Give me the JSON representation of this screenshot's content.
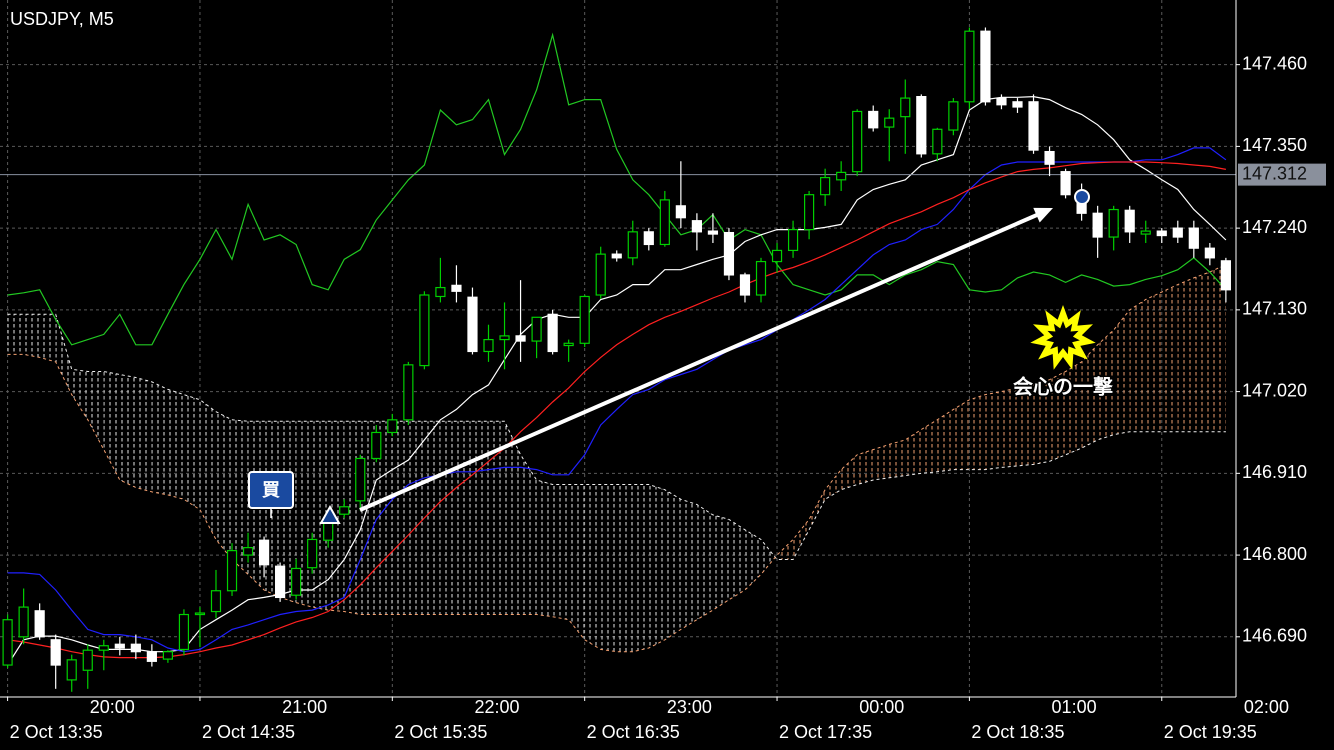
{
  "chart_data": {
    "type": "candlestick",
    "title": "USDJPY, M5",
    "categories": [
      "2 Oct 13:35",
      null,
      null,
      null,
      null,
      null,
      null,
      null,
      null,
      null,
      null,
      null,
      "2 Oct 14:35",
      null,
      null,
      null,
      null,
      null,
      null,
      null,
      null,
      null,
      null,
      null,
      "2 Oct 15:35",
      null,
      null,
      null,
      null,
      null,
      null,
      null,
      null,
      null,
      null,
      null,
      "2 Oct 16:35",
      null,
      null,
      null,
      null,
      null,
      null,
      null,
      null,
      null,
      null,
      null,
      "2 Oct 17:35",
      null,
      null,
      null,
      null,
      null,
      null,
      null,
      null,
      null,
      null,
      null,
      "2 Oct 18:35",
      null,
      null,
      null,
      null,
      null,
      null,
      null,
      null,
      null,
      null,
      null,
      "2 Oct 19:35",
      null,
      null,
      null,
      null,
      null
    ],
    "local_time_labels": [
      null,
      null,
      null,
      null,
      null,
      "20:00",
      null,
      null,
      null,
      null,
      null,
      null,
      null,
      null,
      null,
      null,
      null,
      "21:00",
      null,
      null,
      null,
      null,
      null,
      null,
      null,
      null,
      null,
      null,
      null,
      "22:00",
      null,
      null,
      null,
      null,
      null,
      null,
      null,
      null,
      null,
      null,
      null,
      "23:00",
      null,
      null,
      null,
      null,
      null,
      null,
      null,
      null,
      null,
      null,
      null,
      "00:00",
      null,
      null,
      null,
      null,
      null,
      null,
      null,
      null,
      null,
      null,
      null,
      "01:00",
      null,
      null,
      null,
      null,
      null,
      null,
      null,
      null,
      null,
      null,
      null,
      "02:00"
    ],
    "open": [
      146.652,
      146.69,
      146.725,
      146.686,
      146.632,
      146.645,
      146.672,
      146.68,
      146.68,
      146.67,
      146.66,
      146.673,
      146.72,
      146.724,
      146.752,
      146.8,
      146.82,
      146.785,
      146.746,
      146.783,
      146.82,
      146.855,
      146.873,
      146.93,
      146.965,
      146.982,
      147.055,
      147.148,
      147.163,
      147.147,
      147.074,
      147.09,
      147.095,
      147.088,
      147.124,
      147.082,
      147.085,
      147.15,
      147.205,
      147.2,
      147.235,
      147.218,
      147.27,
      147.25,
      147.236,
      147.234,
      147.177,
      147.15,
      147.195,
      147.21,
      147.238,
      147.285,
      147.305,
      147.316,
      147.397,
      147.376,
      147.39,
      147.417,
      147.34,
      147.372,
      147.41,
      147.505,
      147.415,
      147.41,
      147.41,
      147.343,
      147.316,
      147.28,
      147.26,
      147.228,
      147.264,
      147.232,
      147.236,
      147.24,
      147.24,
      147.213,
      147.196,
      null
    ],
    "high": [
      146.72,
      146.755,
      146.735,
      146.693,
      146.666,
      146.68,
      146.686,
      146.69,
      146.693,
      146.68,
      146.672,
      146.727,
      146.73,
      146.78,
      146.816,
      146.83,
      146.825,
      146.79,
      146.795,
      146.83,
      146.855,
      146.875,
      146.935,
      146.975,
      146.99,
      147.06,
      147.155,
      147.2,
      147.19,
      147.16,
      147.11,
      147.14,
      147.17,
      147.12,
      147.13,
      147.09,
      147.15,
      147.215,
      147.21,
      147.25,
      147.24,
      147.29,
      147.33,
      147.26,
      147.26,
      147.24,
      147.18,
      147.2,
      147.22,
      147.25,
      147.29,
      147.32,
      147.33,
      147.4,
      147.405,
      147.4,
      147.44,
      147.42,
      147.375,
      147.415,
      147.51,
      147.51,
      147.42,
      147.415,
      147.42,
      147.35,
      147.32,
      147.3,
      147.27,
      147.27,
      147.27,
      147.25,
      147.24,
      147.25,
      147.25,
      147.22,
      147.2,
      null
    ],
    "low": [
      146.648,
      146.68,
      146.686,
      146.62,
      146.616,
      146.62,
      146.645,
      146.665,
      146.66,
      146.65,
      146.655,
      146.665,
      146.676,
      146.715,
      146.745,
      146.79,
      146.77,
      146.737,
      146.74,
      146.775,
      146.81,
      146.85,
      146.86,
      146.925,
      146.96,
      146.975,
      147.05,
      147.14,
      147.14,
      147.07,
      147.06,
      147.05,
      147.06,
      147.065,
      147.07,
      147.06,
      147.08,
      147.145,
      147.195,
      147.19,
      147.21,
      147.215,
      147.24,
      147.21,
      147.22,
      147.17,
      147.14,
      147.14,
      147.18,
      147.2,
      147.225,
      147.27,
      147.29,
      147.31,
      147.37,
      147.33,
      147.34,
      147.335,
      147.33,
      147.365,
      147.4,
      147.405,
      147.4,
      147.395,
      147.34,
      147.31,
      147.28,
      147.25,
      147.2,
      147.21,
      147.22,
      147.22,
      147.22,
      147.22,
      147.2,
      147.19,
      147.14,
      null
    ],
    "close": [
      146.713,
      146.73,
      146.69,
      146.652,
      146.659,
      146.672,
      146.678,
      146.675,
      146.67,
      146.657,
      146.67,
      146.72,
      146.722,
      146.752,
      146.806,
      146.81,
      146.787,
      146.743,
      146.782,
      146.821,
      146.848,
      146.865,
      146.93,
      146.965,
      146.982,
      147.056,
      147.15,
      147.16,
      147.155,
      147.074,
      147.09,
      147.095,
      147.088,
      147.12,
      147.074,
      147.085,
      147.148,
      147.205,
      147.2,
      147.235,
      147.218,
      147.278,
      147.254,
      147.235,
      147.232,
      147.177,
      147.15,
      147.195,
      147.21,
      147.238,
      147.285,
      147.308,
      147.315,
      147.397,
      147.375,
      147.388,
      147.415,
      147.34,
      147.373,
      147.41,
      147.505,
      147.41,
      147.406,
      147.403,
      147.345,
      147.326,
      147.285,
      147.26,
      147.228,
      147.265,
      147.235,
      147.236,
      147.23,
      147.228,
      147.213,
      147.2,
      147.157,
      null
    ],
    "up_color": "#00d000",
    "down_color": "#ffffff",
    "lines": [
      {
        "color": "#22c822",
        "values": [
          147.15,
          147.153,
          147.157,
          147.117,
          147.083,
          147.09,
          147.097,
          147.124,
          147.083,
          147.083,
          147.124,
          147.164,
          147.198,
          147.238,
          147.198,
          147.272,
          147.224,
          147.231,
          147.218,
          147.164,
          147.157,
          147.198,
          147.211,
          147.251,
          147.278,
          147.305,
          147.325,
          147.399,
          147.379,
          147.386,
          147.413,
          147.339,
          147.373,
          147.426,
          147.5,
          147.406,
          147.413,
          147.413,
          147.346,
          147.305,
          147.285,
          147.258,
          147.231,
          147.238,
          147.258,
          147.224,
          147.238,
          147.231,
          147.191,
          147.164,
          147.157,
          147.15,
          147.157,
          147.177,
          147.177,
          147.164,
          147.177,
          147.184,
          147.195,
          147.191,
          147.157,
          147.154,
          147.157,
          147.173,
          147.181,
          147.177,
          147.167,
          147.177,
          147.171,
          147.162,
          147.164,
          147.171,
          147.176,
          147.184,
          147.2,
          147.181,
          147.157,
          null
        ]
      },
      {
        "color": "#ffffff",
        "values": [
          146.652,
          146.686,
          146.691,
          146.691,
          146.686,
          146.679,
          146.673,
          146.673,
          146.673,
          146.67,
          146.67,
          146.673,
          146.7,
          146.713,
          146.726,
          146.74,
          146.743,
          146.747,
          146.753,
          146.753,
          146.767,
          146.794,
          146.834,
          146.901,
          146.915,
          146.928,
          146.955,
          146.982,
          146.996,
          147.016,
          147.029,
          147.063,
          147.097,
          147.117,
          147.124,
          147.12,
          147.12,
          147.144,
          147.15,
          147.164,
          147.164,
          147.184,
          147.184,
          147.191,
          147.198,
          147.204,
          147.222,
          147.231,
          147.238,
          147.238,
          147.238,
          147.241,
          147.245,
          147.278,
          147.292,
          147.299,
          147.305,
          147.325,
          147.332,
          147.339,
          147.399,
          147.413,
          147.416,
          147.416,
          147.417,
          147.413,
          147.402,
          147.393,
          147.379,
          147.359,
          147.332,
          147.319,
          147.305,
          147.292,
          147.265,
          147.245,
          147.224,
          null
        ]
      },
      {
        "color": "#2020ff",
        "values": [
          146.776,
          146.776,
          146.774,
          146.753,
          146.726,
          146.7,
          146.693,
          146.693,
          146.69,
          146.686,
          146.675,
          146.67,
          146.673,
          146.686,
          146.7,
          146.706,
          146.713,
          146.72,
          146.724,
          146.726,
          146.733,
          146.743,
          146.794,
          146.848,
          146.875,
          146.895,
          146.904,
          146.908,
          146.912,
          146.912,
          146.915,
          146.918,
          146.918,
          146.915,
          146.908,
          146.908,
          146.935,
          146.975,
          146.996,
          147.016,
          147.023,
          147.036,
          147.043,
          147.05,
          147.063,
          147.076,
          147.083,
          147.09,
          147.103,
          147.117,
          147.13,
          147.144,
          147.164,
          147.184,
          147.204,
          147.218,
          147.224,
          147.238,
          147.245,
          147.265,
          147.292,
          147.312,
          147.325,
          147.329,
          147.329,
          147.329,
          147.329,
          147.329,
          147.329,
          147.329,
          147.329,
          147.332,
          147.332,
          147.339,
          147.348,
          147.348,
          147.332,
          null
        ]
      },
      {
        "color": "#ff2020",
        "values": [
          146.686,
          146.683,
          146.679,
          146.675,
          146.67,
          146.666,
          146.663,
          146.662,
          146.662,
          146.662,
          146.663,
          146.666,
          146.67,
          146.675,
          146.679,
          146.686,
          146.693,
          146.702,
          146.71,
          146.716,
          146.724,
          146.74,
          146.76,
          146.783,
          146.805,
          146.827,
          146.85,
          146.872,
          146.891,
          146.908,
          146.926,
          146.944,
          146.966,
          146.985,
          147.006,
          147.025,
          147.047,
          147.066,
          147.083,
          147.097,
          147.11,
          147.12,
          147.128,
          147.137,
          147.146,
          147.154,
          147.164,
          147.173,
          147.181,
          147.187,
          147.195,
          147.204,
          147.214,
          147.224,
          147.235,
          147.246,
          147.254,
          147.262,
          147.272,
          147.281,
          147.292,
          147.301,
          147.309,
          147.316,
          147.319,
          147.321,
          147.324,
          147.327,
          147.328,
          147.329,
          147.329,
          147.329,
          147.328,
          147.327,
          147.325,
          147.323,
          147.319,
          null
        ]
      }
    ],
    "cloud": {
      "span_a": {
        "color": "#f0f0f0",
        "values": [
          147.124,
          147.124,
          147.124,
          147.124,
          147.05,
          147.047,
          147.047,
          147.043,
          147.039,
          147.033,
          147.023,
          147.016,
          147.009,
          146.993,
          146.982,
          146.98,
          146.98,
          146.98,
          146.98,
          146.98,
          146.98,
          146.98,
          146.98,
          146.98,
          146.98,
          146.98,
          146.98,
          146.98,
          146.98,
          146.98,
          146.98,
          146.98,
          146.935,
          146.901,
          146.895,
          146.895,
          146.895,
          146.895,
          146.895,
          146.895,
          146.895,
          146.888,
          146.875,
          146.868,
          146.854,
          146.848,
          146.834,
          146.821,
          146.794,
          146.794,
          146.834,
          146.875,
          146.888,
          146.895,
          146.901,
          146.904,
          146.907,
          146.91,
          146.912,
          146.915,
          146.915,
          146.915,
          146.918,
          146.92,
          146.922,
          146.926,
          146.935,
          146.944,
          146.955,
          146.962,
          146.966,
          146.966,
          146.966,
          146.966,
          146.966,
          146.966,
          146.966,
          null
        ]
      },
      "span_b": {
        "color": "#f4a070",
        "values": [
          147.07,
          147.07,
          147.066,
          147.06,
          147.016,
          146.982,
          146.942,
          146.901,
          146.891,
          146.885,
          146.881,
          146.875,
          146.861,
          146.821,
          146.794,
          146.774,
          146.753,
          146.743,
          146.736,
          146.73,
          146.726,
          146.724,
          146.72,
          146.72,
          146.72,
          146.72,
          146.72,
          146.72,
          146.72,
          146.72,
          146.72,
          146.72,
          146.72,
          146.72,
          146.717,
          146.713,
          146.686,
          146.673,
          146.67,
          146.67,
          146.675,
          146.686,
          146.7,
          146.713,
          146.726,
          146.74,
          146.753,
          146.774,
          146.8,
          146.821,
          146.848,
          146.888,
          146.915,
          146.935,
          146.942,
          146.949,
          146.955,
          146.969,
          146.982,
          146.996,
          147.009,
          147.016,
          147.02,
          147.025,
          147.029,
          147.036,
          147.047,
          147.06,
          147.083,
          147.103,
          147.13,
          147.144,
          147.154,
          147.164,
          147.173,
          147.181,
          147.191,
          null
        ]
      }
    },
    "ylim": [
      146.609,
      147.547
    ],
    "yticks": [
      {
        "value": 147.46,
        "label": "147.460"
      },
      {
        "value": 147.35,
        "label": "147.350"
      },
      {
        "value": 147.24,
        "label": "147.240"
      },
      {
        "value": 147.13,
        "label": "147.130"
      },
      {
        "value": 147.02,
        "label": "147.020"
      },
      {
        "value": 146.91,
        "label": "146.910"
      },
      {
        "value": 146.8,
        "label": "146.800"
      },
      {
        "value": 146.69,
        "label": "146.690"
      }
    ],
    "current_price": 147.312,
    "grid": true,
    "annotations": {
      "buy": "買",
      "critical_hit": "会心の一撃"
    }
  }
}
